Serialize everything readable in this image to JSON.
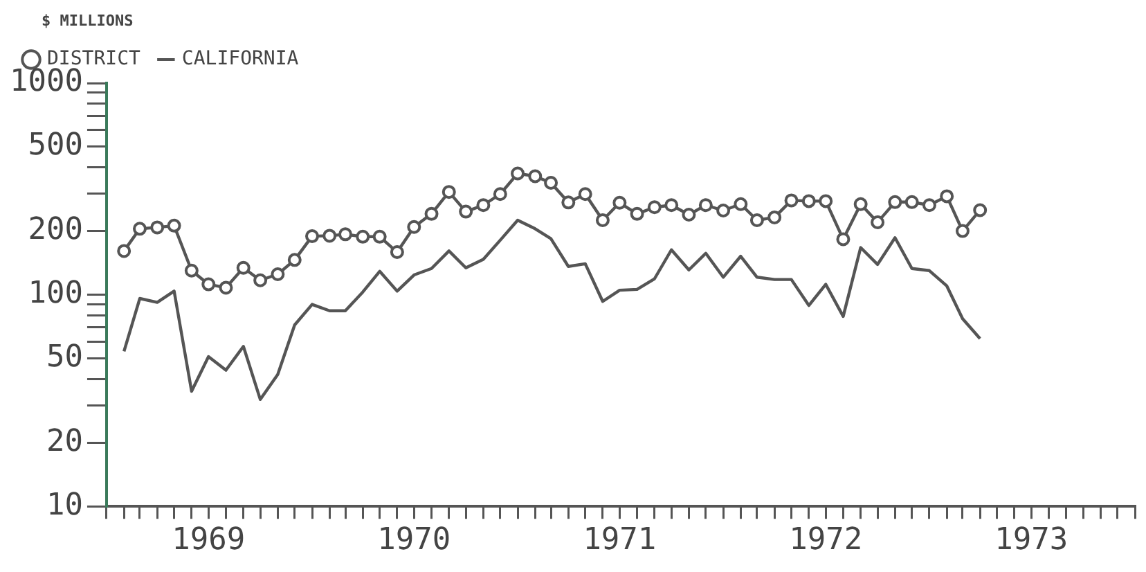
{
  "chart_data": {
    "type": "line",
    "ylabel": "$ MILLIONS",
    "log": "y",
    "grid": false,
    "legend": "top left",
    "line_style": "solid",
    "x": [
      "1969-02",
      "1969-03",
      "1969-04",
      "1969-05",
      "1969-06",
      "1969-07",
      "1969-08",
      "1969-09",
      "1969-10",
      "1969-11",
      "1969-12",
      "1970-01",
      "1970-02",
      "1970-03",
      "1970-04",
      "1970-05",
      "1970-06",
      "1970-07",
      "1970-08",
      "1970-09",
      "1970-10",
      "1970-11",
      "1970-12",
      "1971-01",
      "1971-02",
      "1971-03",
      "1971-04",
      "1971-05",
      "1971-06",
      "1971-07",
      "1971-08",
      "1971-09",
      "1971-10",
      "1971-11",
      "1971-12",
      "1972-01",
      "1972-02",
      "1972-03",
      "1972-04",
      "1972-05",
      "1972-06",
      "1972-07",
      "1972-08",
      "1972-09",
      "1972-10",
      "1972-11",
      "1972-12",
      "1973-01",
      "1973-02",
      "1973-03",
      "1973-04"
    ],
    "series": [
      {
        "name": "DISTRICT",
        "color": "#555555",
        "marker": "circle",
        "values": [
          161,
          205,
          208,
          212,
          130,
          112,
          108,
          134,
          117,
          125,
          146,
          189,
          190,
          193,
          188,
          188,
          159,
          209,
          241,
          306,
          247,
          265,
          299,
          374,
          363,
          338,
          273,
          299,
          225,
          272,
          241,
          259,
          265,
          239,
          265,
          250,
          268,
          225,
          232,
          279,
          277,
          277,
          183,
          268,
          220,
          274,
          274,
          265,
          292,
          200,
          251
        ]
      },
      {
        "name": "CALIFORNIA",
        "color": "#555555",
        "marker": "none",
        "values": [
          54,
          96,
          92,
          104,
          35,
          51,
          44,
          57,
          32,
          42,
          72,
          90,
          84,
          84,
          103,
          129,
          104,
          124,
          133,
          161,
          134,
          147,
          181,
          225,
          205,
          184,
          136,
          140,
          93,
          105,
          106,
          119,
          163,
          131,
          157,
          121,
          152,
          121,
          118,
          118,
          89,
          112,
          79,
          167,
          139,
          186,
          133,
          130,
          110,
          77,
          62
        ]
      }
    ],
    "xlim": [
      "1969-01",
      "1974-01"
    ],
    "xticks": [
      {
        "value": "1969-01",
        "label": null
      },
      {
        "value": "1969-02",
        "label": null
      },
      {
        "value": "1969-03",
        "label": null
      },
      {
        "value": "1969-04",
        "label": null
      },
      {
        "value": "1969-05",
        "label": null
      },
      {
        "value": "1969-06",
        "label": null
      },
      {
        "value": "1969-07",
        "label": "1969"
      },
      {
        "value": "1969-08",
        "label": null
      },
      {
        "value": "1969-09",
        "label": null
      },
      {
        "value": "1969-10",
        "label": null
      },
      {
        "value": "1969-11",
        "label": null
      },
      {
        "value": "1969-12",
        "label": null
      },
      {
        "value": "1970-01",
        "label": null
      },
      {
        "value": "1970-02",
        "label": null
      },
      {
        "value": "1970-03",
        "label": null
      },
      {
        "value": "1970-04",
        "label": null
      },
      {
        "value": "1970-05",
        "label": null
      },
      {
        "value": "1970-06",
        "label": null
      },
      {
        "value": "1970-07",
        "label": "1970"
      },
      {
        "value": "1970-08",
        "label": null
      },
      {
        "value": "1970-09",
        "label": null
      },
      {
        "value": "1970-10",
        "label": null
      },
      {
        "value": "1970-11",
        "label": null
      },
      {
        "value": "1970-12",
        "label": null
      },
      {
        "value": "1971-01",
        "label": null
      },
      {
        "value": "1971-02",
        "label": null
      },
      {
        "value": "1971-03",
        "label": null
      },
      {
        "value": "1971-04",
        "label": null
      },
      {
        "value": "1971-05",
        "label": null
      },
      {
        "value": "1971-06",
        "label": null
      },
      {
        "value": "1971-07",
        "label": "1971"
      },
      {
        "value": "1971-08",
        "label": null
      },
      {
        "value": "1971-09",
        "label": null
      },
      {
        "value": "1971-10",
        "label": null
      },
      {
        "value": "1971-11",
        "label": null
      },
      {
        "value": "1971-12",
        "label": null
      },
      {
        "value": "1972-01",
        "label": null
      },
      {
        "value": "1972-02",
        "label": null
      },
      {
        "value": "1972-03",
        "label": null
      },
      {
        "value": "1972-04",
        "label": null
      },
      {
        "value": "1972-05",
        "label": null
      },
      {
        "value": "1972-06",
        "label": null
      },
      {
        "value": "1972-07",
        "label": "1972"
      },
      {
        "value": "1972-08",
        "label": null
      },
      {
        "value": "1972-09",
        "label": null
      },
      {
        "value": "1972-10",
        "label": null
      },
      {
        "value": "1972-11",
        "label": null
      },
      {
        "value": "1972-12",
        "label": null
      },
      {
        "value": "1973-01",
        "label": null
      },
      {
        "value": "1973-02",
        "label": null
      },
      {
        "value": "1973-03",
        "label": null
      },
      {
        "value": "1973-04",
        "label": null
      },
      {
        "value": "1973-05",
        "label": null
      },
      {
        "value": "1973-06",
        "label": null
      },
      {
        "value": "1973-07",
        "label": "1973"
      },
      {
        "value": "1973-08",
        "label": null
      },
      {
        "value": "1973-09",
        "label": null
      },
      {
        "value": "1973-10",
        "label": null
      },
      {
        "value": "1973-11",
        "label": null
      },
      {
        "value": "1973-12",
        "label": null
      },
      {
        "value": "1974-01",
        "label": null
      }
    ],
    "ylim": [
      10,
      1000
    ],
    "yticks": [
      10,
      20,
      {
        "value": 30,
        "label": null
      },
      {
        "value": 40,
        "label": null
      },
      50,
      {
        "value": 60,
        "label": null
      },
      {
        "value": 70,
        "label": null
      },
      {
        "value": 80,
        "label": null
      },
      {
        "value": 90,
        "label": null
      },
      100,
      200,
      {
        "value": 300,
        "label": null
      },
      {
        "value": 400,
        "label": null
      },
      500,
      {
        "value": 600,
        "label": null
      },
      {
        "value": 700,
        "label": null
      },
      {
        "value": 800,
        "label": null
      },
      {
        "value": 900,
        "label": null
      },
      1000
    ]
  }
}
